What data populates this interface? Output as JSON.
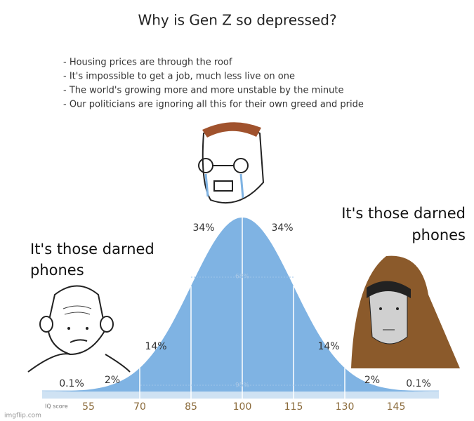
{
  "title": "Why is Gen Z so depressed?",
  "bullets": [
    "- Housing prices are through the roof",
    "- It's impossible to get a job, much less live on one",
    "- The world's growing more and more unstable by the minute",
    "- Our politicians are ignoring all this for their own greed and pride"
  ],
  "captions": {
    "left": [
      "It's those darned",
      "phones"
    ],
    "right": [
      "It's those darned",
      "phones"
    ]
  },
  "curve": {
    "axis_label": "IQ score",
    "ticks": [
      "55",
      "70",
      "85",
      "100",
      "115",
      "130",
      "145"
    ],
    "percentages": {
      "left": [
        "0.1%",
        "2%",
        "14%",
        "34%"
      ],
      "right": [
        "34%",
        "14%",
        "2%",
        "0.1%"
      ],
      "inner": [
        "68%",
        "95%"
      ]
    }
  },
  "watermark": "imgflip.com"
}
